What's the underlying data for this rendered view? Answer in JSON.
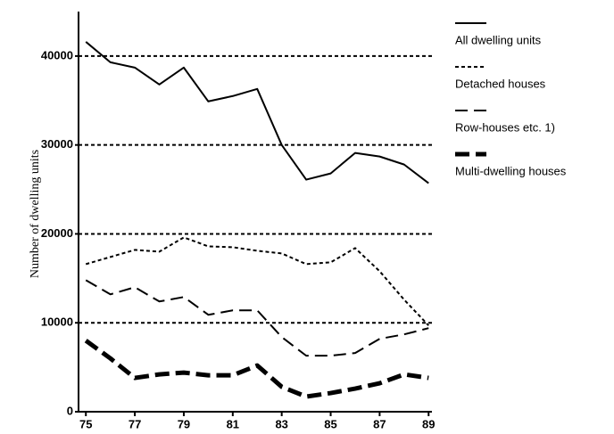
{
  "chart_data": {
    "type": "line",
    "ylabel": "Number of dwelling units",
    "x": [
      75,
      76,
      77,
      78,
      79,
      80,
      81,
      82,
      83,
      84,
      85,
      86,
      87,
      88,
      89
    ],
    "xlim": [
      74.7,
      89.1
    ],
    "xticks": [
      75,
      77,
      79,
      81,
      83,
      85,
      87,
      89
    ],
    "ylim": [
      0,
      45000
    ],
    "yticks": [
      0,
      10000,
      20000,
      30000,
      40000
    ],
    "grid": true,
    "legend": "right",
    "series": [
      {
        "name": "All dwelling units",
        "color": "#000000",
        "style": "solid",
        "values": [
          41600,
          39300,
          38700,
          36800,
          38700,
          34900,
          35500,
          36300,
          30000,
          26100,
          26800,
          29100,
          28700,
          27800,
          25700
        ]
      },
      {
        "name": "Detached houses",
        "color": "#000000",
        "style": "dotted",
        "values": [
          16600,
          17400,
          18200,
          18000,
          19600,
          18600,
          18500,
          18100,
          17800,
          16600,
          16800,
          18400,
          15800,
          12600,
          9700
        ]
      },
      {
        "name": "Row-houses etc. 1)",
        "color": "#000000",
        "style": "dashed",
        "values": [
          14800,
          13200,
          14000,
          12400,
          12900,
          10900,
          11400,
          11400,
          8400,
          6300,
          6300,
          6600,
          8200,
          8700,
          9400
        ]
      },
      {
        "name": "Multi-dwelling houses",
        "color": "#000000",
        "style": "thick-dashed",
        "values": [
          8000,
          6000,
          3800,
          4200,
          4400,
          4100,
          4100,
          5200,
          2800,
          1700,
          2100,
          2600,
          3200,
          4200,
          3800
        ]
      }
    ]
  }
}
